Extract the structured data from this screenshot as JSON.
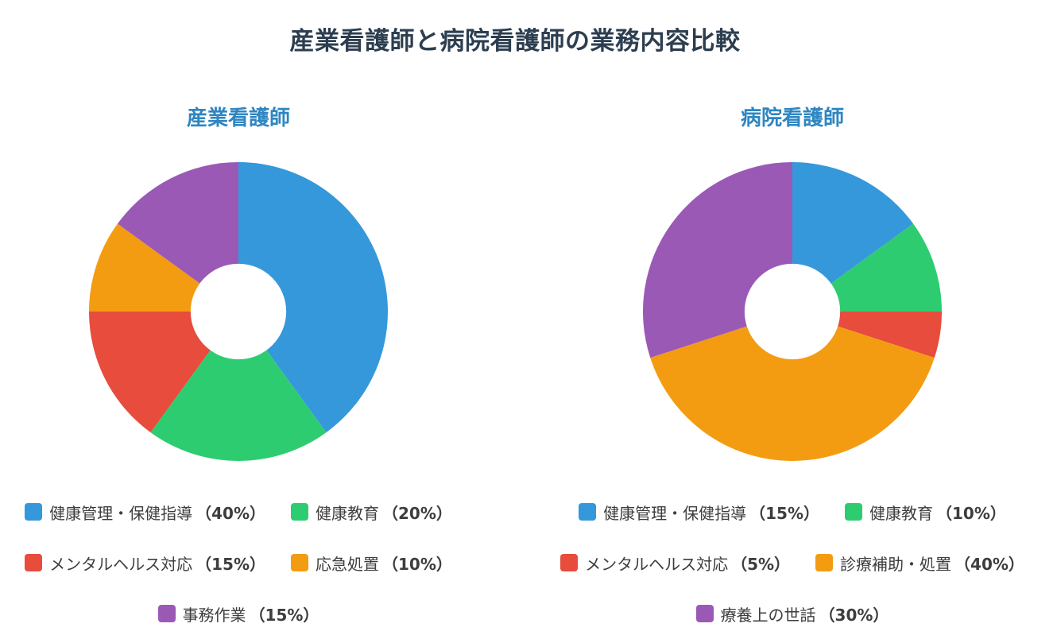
{
  "title": "産業看護師と病院看護師の業務内容比較",
  "chart_data": [
    {
      "type": "pie",
      "title": "産業看護師",
      "inner_radius_ratio": 0.32,
      "start_angle": "12 o'clock",
      "direction": "clockwise",
      "slices": [
        {
          "label": "健康管理・保健指導",
          "value": 40,
          "display": "（40%）",
          "color": "#3498db"
        },
        {
          "label": "健康教育",
          "value": 20,
          "display": "（20%）",
          "color": "#2ecc71"
        },
        {
          "label": "メンタルヘルス対応",
          "value": 15,
          "display": "（15%）",
          "color": "#e74c3c"
        },
        {
          "label": "応急処置",
          "value": 10,
          "display": "（10%）",
          "color": "#f39c12"
        },
        {
          "label": "事務作業",
          "value": 15,
          "display": "（15%）",
          "color": "#9b59b6"
        }
      ],
      "legend_rows": [
        [
          0,
          1
        ],
        [
          2,
          3
        ],
        [
          4
        ]
      ],
      "legend_placement": "bottom"
    },
    {
      "type": "pie",
      "title": "病院看護師",
      "inner_radius_ratio": 0.32,
      "start_angle": "12 o'clock",
      "direction": "clockwise",
      "slices": [
        {
          "label": "健康管理・保健指導",
          "value": 15,
          "display": "（15%）",
          "color": "#3498db"
        },
        {
          "label": "健康教育",
          "value": 10,
          "display": "（10%）",
          "color": "#2ecc71"
        },
        {
          "label": "メンタルヘルス対応",
          "value": 5,
          "display": "（5%）",
          "color": "#e74c3c"
        },
        {
          "label": "診療補助・処置",
          "value": 40,
          "display": "（40%）",
          "color": "#f39c12"
        },
        {
          "label": "療養上の世話",
          "value": 30,
          "display": "（30%）",
          "color": "#9b59b6"
        }
      ],
      "legend_rows": [
        [
          0,
          1
        ],
        [
          2,
          3
        ],
        [
          4
        ]
      ],
      "legend_placement": "bottom"
    }
  ]
}
